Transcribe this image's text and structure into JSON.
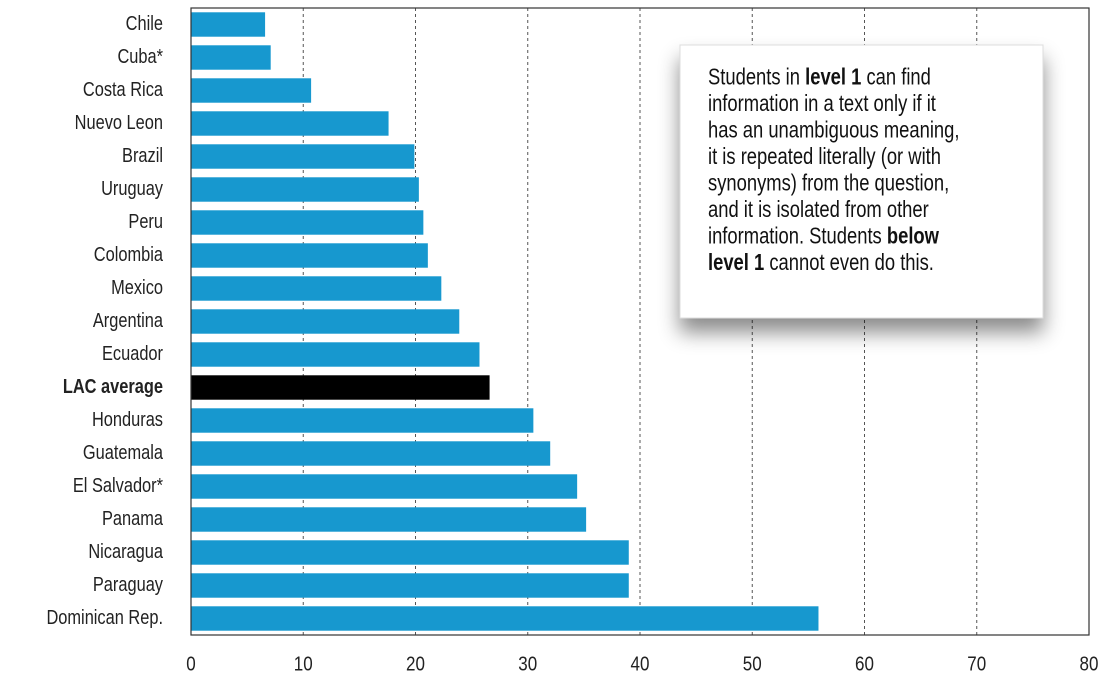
{
  "chart_data": {
    "type": "hbar",
    "categories": [
      "Chile",
      "Cuba*",
      "Costa Rica",
      "Nuevo Leon",
      "Brazil",
      "Uruguay",
      "Peru",
      "Colombia",
      "Mexico",
      "Argentina",
      "Ecuador",
      "LAC average",
      "Honduras",
      "Guatemala",
      "El Salvador*",
      "Panama",
      "Nicaragua",
      "Paraguay",
      "Dominican Rep."
    ],
    "values": [
      6.6,
      7.1,
      10.7,
      17.6,
      19.9,
      20.3,
      20.7,
      21.1,
      22.3,
      23.9,
      25.7,
      26.6,
      30.5,
      32.0,
      34.4,
      35.2,
      39.0,
      39.0,
      55.9
    ],
    "colors": [
      "#1798cf",
      "#1798cf",
      "#1798cf",
      "#1798cf",
      "#1798cf",
      "#1798cf",
      "#1798cf",
      "#1798cf",
      "#1798cf",
      "#1798cf",
      "#1798cf",
      "#000000",
      "#1798cf",
      "#1798cf",
      "#1798cf",
      "#1798cf",
      "#1798cf",
      "#1798cf",
      "#1798cf"
    ],
    "xlim": [
      0,
      80
    ],
    "xticks": [
      0,
      10,
      20,
      30,
      40,
      50,
      60,
      70,
      80
    ],
    "grid": true,
    "annotation": [
      [
        {
          "text": "Students in ",
          "bold": false
        },
        {
          "text": "level 1",
          "bold": true
        },
        {
          "text": " can find",
          "bold": false
        }
      ],
      [
        {
          "text": "information in a text only if it",
          "bold": false
        }
      ],
      [
        {
          "text": "has an unambiguous meaning,",
          "bold": false
        }
      ],
      [
        {
          "text": "it is repeated literally (or with",
          "bold": false
        }
      ],
      [
        {
          "text": "synonyms) from the question,",
          "bold": false
        }
      ],
      [
        {
          "text": "and it is isolated from other",
          "bold": false
        }
      ],
      [
        {
          "text": "information. Students ",
          "bold": false
        },
        {
          "text": "below",
          "bold": true
        }
      ],
      [
        {
          "text": "level 1",
          "bold": true
        },
        {
          "text": " cannot even do this.",
          "bold": false
        }
      ]
    ]
  }
}
